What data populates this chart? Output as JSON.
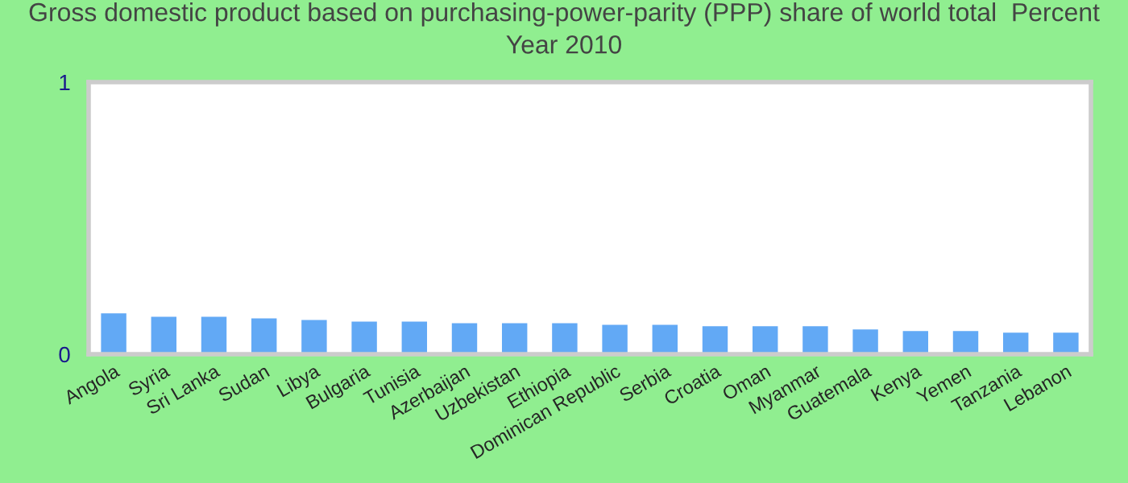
{
  "chart_data": {
    "type": "bar",
    "title": "Gross domestic product based on purchasing-power-parity (PPP) share of world total  Percent\nYear 2010",
    "categories": [
      "Angola",
      "Syria",
      "Sri Lanka",
      "Sudan",
      "Libya",
      "Bulgaria",
      "Tunisia",
      "Azerbaijan",
      "Uzbekistan",
      "Ethiopia",
      "Dominican Republic",
      "Serbia",
      "Croatia",
      "Oman",
      "Myanmar",
      "Guatemala",
      "Kenya",
      "Yemen",
      "Tanzania",
      "Lebanon"
    ],
    "values": [
      0.154,
      0.142,
      0.142,
      0.136,
      0.13,
      0.124,
      0.124,
      0.118,
      0.118,
      0.118,
      0.112,
      0.112,
      0.107,
      0.107,
      0.107,
      0.095,
      0.089,
      0.089,
      0.083,
      0.083
    ],
    "color": "#62a9f5",
    "ylim": [
      0,
      1
    ],
    "yticks": [
      0,
      1
    ],
    "grid": false
  }
}
